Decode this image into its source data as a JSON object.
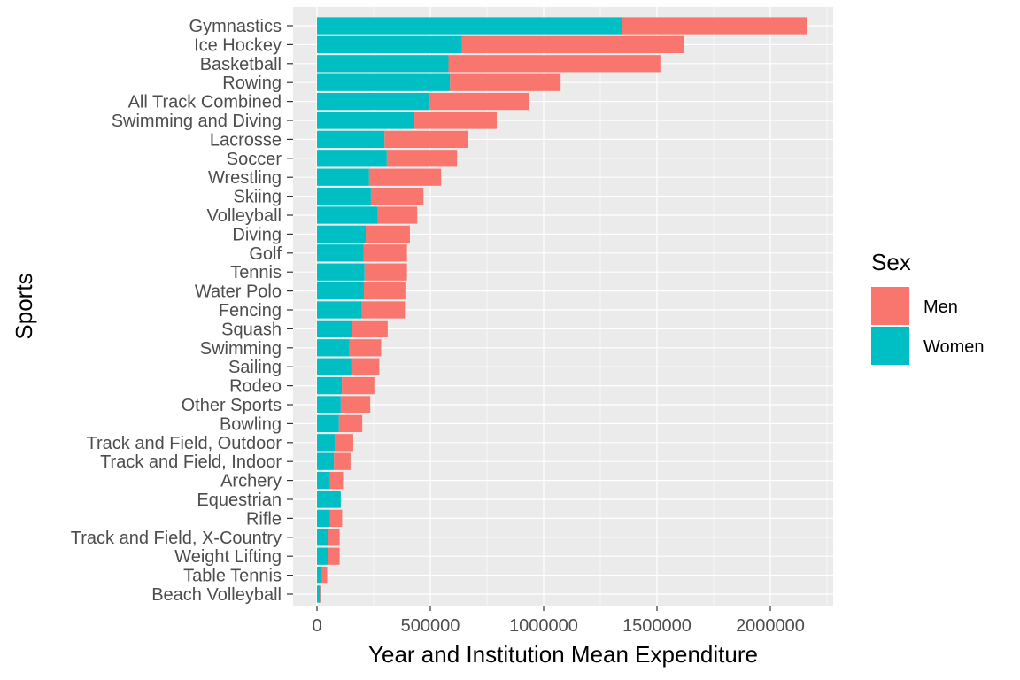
{
  "chart_data": {
    "type": "bar",
    "orientation": "horizontal",
    "stacked": true,
    "xlabel": "Year and Institution Mean Expenditure",
    "ylabel": "Sports",
    "xlim": [
      0,
      2260000
    ],
    "xticks": [
      0,
      500000,
      1000000,
      1500000,
      2000000
    ],
    "xtick_labels": [
      "0",
      "500000",
      "1000000",
      "1500000",
      "2000000"
    ],
    "grid": true,
    "legend": {
      "title": "Sex",
      "placement": "right",
      "entries": [
        {
          "name": "Men",
          "color": "#F8766D"
        },
        {
          "name": "Women",
          "color": "#00BFC4"
        }
      ]
    },
    "categories": [
      "Gymnastics",
      "Ice Hockey",
      "Basketball",
      "Rowing",
      "All Track Combined",
      "Swimming and Diving",
      "Lacrosse",
      "Soccer",
      "Wrestling",
      "Skiing",
      "Volleyball",
      "Diving",
      "Golf",
      "Tennis",
      "Water Polo",
      "Fencing",
      "Squash",
      "Swimming",
      "Sailing",
      "Rodeo",
      "Other Sports",
      "Bowling",
      "Track and Field, Outdoor",
      "Track and Field, Indoor",
      "Archery",
      "Equestrian",
      "Rifle",
      "Track and Field, X-Country",
      "Weight Lifting",
      "Table Tennis",
      "Beach Volleyball"
    ],
    "series": [
      {
        "name": "Women",
        "color": "#00BFC4",
        "values": [
          1345000,
          640000,
          580000,
          587000,
          495000,
          430000,
          298000,
          308000,
          230000,
          238000,
          268000,
          215000,
          205000,
          210000,
          207000,
          198000,
          155000,
          143000,
          152000,
          110000,
          105000,
          97000,
          78000,
          75000,
          58000,
          105000,
          58000,
          50000,
          50000,
          22000,
          13000
        ]
      },
      {
        "name": "Men",
        "color": "#F8766D",
        "values": [
          818000,
          980000,
          935000,
          488000,
          443000,
          363000,
          370000,
          310000,
          318000,
          232000,
          174000,
          195000,
          192000,
          187000,
          183000,
          190000,
          157000,
          140000,
          123000,
          143000,
          130000,
          103000,
          82000,
          73000,
          57000,
          0,
          53000,
          50000,
          50000,
          23000,
          3000
        ]
      }
    ]
  }
}
